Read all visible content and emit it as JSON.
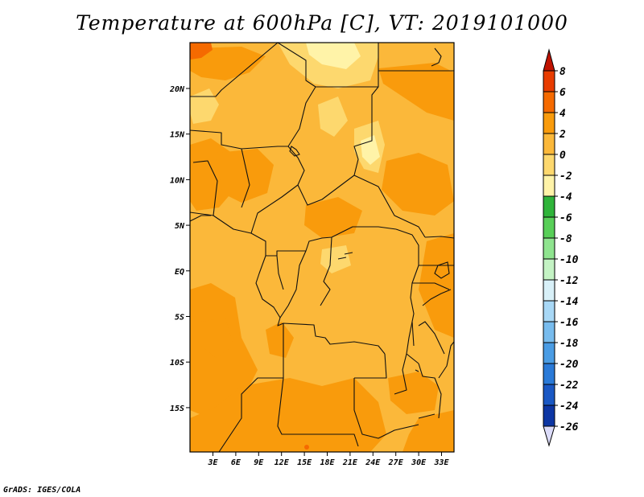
{
  "title": "Temperature at 600hPa [C], VT: 2019101000",
  "credit": "GrADS: IGES/COLA",
  "lon_labels": [
    "3E",
    "6E",
    "9E",
    "12E",
    "15E",
    "18E",
    "21E",
    "24E",
    "27E",
    "30E",
    "33E"
  ],
  "lat_labels": [
    "20N",
    "15N",
    "10N",
    "5N",
    "EQ",
    "5S",
    "10S",
    "15S"
  ],
  "colorbar": {
    "labels": [
      "8",
      "6",
      "4",
      "2",
      "0",
      "-2",
      "-4",
      "-6",
      "-8",
      "-10",
      "-12",
      "-14",
      "-16",
      "-18",
      "-20",
      "-22",
      "-24",
      "-26"
    ],
    "colors": [
      "#c01200",
      "#e83c00",
      "#f56a00",
      "#f99b0c",
      "#fbb83a",
      "#fdd86e",
      "#fff3a8",
      "#2fb43a",
      "#58cf58",
      "#8fe48f",
      "#c4f3c4",
      "#d8f0f8",
      "#a8d8f6",
      "#78bcee",
      "#4a9ce4",
      "#2a7ad8",
      "#1a58c4",
      "#0d36a4",
      "#07137a"
    ],
    "top_arrow_color": "#c01200",
    "bottom_arrow_color": "#dcdcfa"
  },
  "palette": {
    "base": "#fbb83a",
    "warm": "#f99b0c",
    "hot": "#f56a00",
    "cool": "#fdd86e",
    "cooler": "#fff3a8"
  }
}
